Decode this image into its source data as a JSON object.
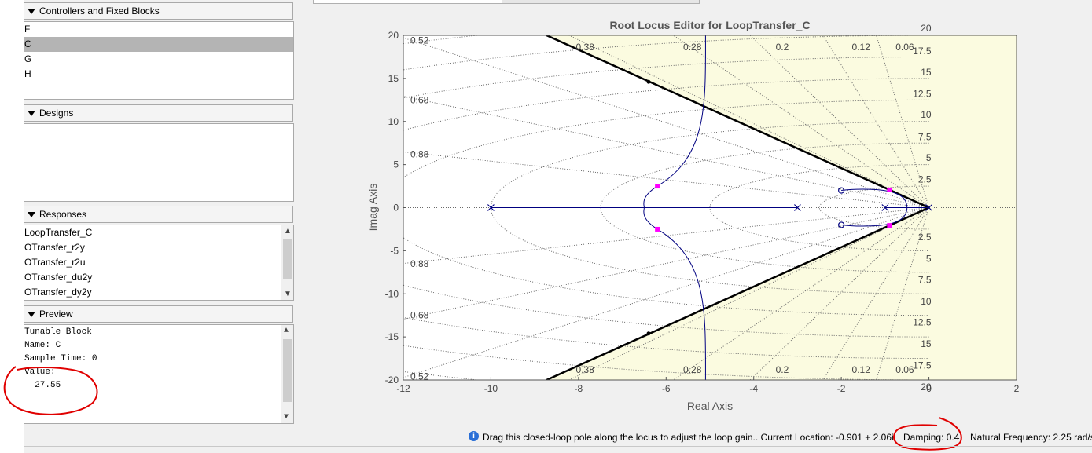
{
  "panels": {
    "controllers": {
      "title": "Controllers and Fixed Blocks",
      "items": [
        "F",
        "C",
        "G",
        "H"
      ],
      "selected_index": 1
    },
    "designs": {
      "title": "Designs"
    },
    "responses": {
      "title": "Responses",
      "items": [
        "LoopTransfer_C",
        "OTransfer_r2y",
        "OTransfer_r2u",
        "OTransfer_du2y",
        "OTransfer_dy2y"
      ]
    },
    "preview": {
      "title": "Preview",
      "lines": [
        "Tunable Block",
        "Name: C",
        "Sample Time: 0",
        "Value:",
        "  27.55"
      ]
    }
  },
  "plot": {
    "title": "Root Locus Editor for LoopTransfer_C",
    "xlabel": "Real Axis",
    "ylabel": "Imag Axis",
    "damping_labels_left": [
      "0.52",
      "0.68",
      "0.88",
      "0.88",
      "0.68",
      "0.52"
    ],
    "damping_labels_top": [
      "0.38",
      "0.28",
      "0.2",
      "0.12",
      "0.06"
    ],
    "damping_labels_bottom": [
      "0.38",
      "0.28",
      "0.2",
      "0.12",
      "0.06"
    ],
    "freq_labels_upper": [
      "20",
      "17.5",
      "15",
      "12.5",
      "10",
      "7.5",
      "5",
      "2.5"
    ],
    "freq_labels_lower": [
      "2.5",
      "5",
      "7.5",
      "10",
      "12.5",
      "15",
      "17.5",
      "20"
    ]
  },
  "chart_data": {
    "type": "scatter",
    "title": "Root Locus Editor for LoopTransfer_C",
    "xlabel": "Real Axis",
    "ylabel": "Imag Axis",
    "xlim": [
      -12,
      2
    ],
    "ylim": [
      -20,
      20
    ],
    "x_ticks": [
      -12,
      -10,
      -8,
      -6,
      -4,
      -2,
      0,
      2
    ],
    "y_ticks": [
      -20,
      -15,
      -10,
      -5,
      0,
      5,
      10,
      15,
      20
    ],
    "open_loop_poles": [
      [
        -10,
        0
      ],
      [
        -3,
        0
      ],
      [
        -1,
        0
      ],
      [
        0,
        0
      ]
    ],
    "open_loop_zeros": [
      [
        -2,
        2
      ],
      [
        -2,
        -2
      ]
    ],
    "closed_loop_poles": [
      [
        -6.2,
        2.5
      ],
      [
        -6.2,
        -2.5
      ],
      [
        -0.901,
        2.06
      ],
      [
        -0.901,
        -2.06
      ]
    ],
    "damping_boundary_points": [
      [
        -6.4,
        14.6
      ],
      [
        -6.4,
        -14.6
      ]
    ],
    "constraint_damping": 0.4,
    "colors": {
      "locus": "#000080",
      "pole": "#ff00ff",
      "constraint": "#000000",
      "shaded": "#fbfbe0"
    }
  },
  "status": {
    "message": "Drag this closed-loop pole along the locus to adjust the loop gain.. Current Location: -0.901 + 2.06i",
    "damping": "Damping: 0.4",
    "natural_frequency": "Natural Frequency: 2.25 rad/s"
  }
}
